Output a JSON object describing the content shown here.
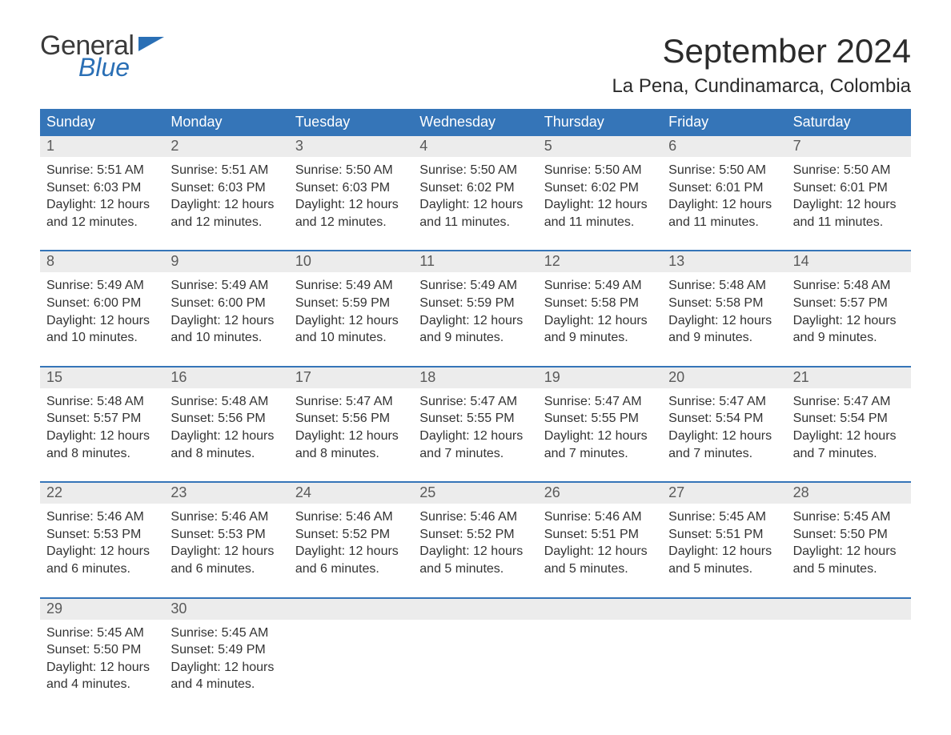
{
  "brand": {
    "text_top": "General",
    "text_bottom": "Blue",
    "top_color": "#3a3a3a",
    "bottom_color": "#2a6fb5",
    "flag_color": "#2a6fb5"
  },
  "title": "September 2024",
  "location": "La Pena, Cundinamarca, Colombia",
  "colors": {
    "header_bg": "#3575b8",
    "header_fg": "#ffffff",
    "daynum_bg": "#ececec",
    "daynum_fg": "#5a5a5a",
    "body_fg": "#333333",
    "week_border": "#3575b8",
    "page_bg": "#ffffff"
  },
  "fonts": {
    "title_size_pt": 32,
    "location_size_pt": 18,
    "dow_size_pt": 14,
    "daynum_size_pt": 14,
    "body_size_pt": 12
  },
  "days_of_week": [
    "Sunday",
    "Monday",
    "Tuesday",
    "Wednesday",
    "Thursday",
    "Friday",
    "Saturday"
  ],
  "weeks": [
    [
      {
        "n": "1",
        "sunrise": "Sunrise: 5:51 AM",
        "sunset": "Sunset: 6:03 PM",
        "daylight1": "Daylight: 12 hours",
        "daylight2": "and 12 minutes."
      },
      {
        "n": "2",
        "sunrise": "Sunrise: 5:51 AM",
        "sunset": "Sunset: 6:03 PM",
        "daylight1": "Daylight: 12 hours",
        "daylight2": "and 12 minutes."
      },
      {
        "n": "3",
        "sunrise": "Sunrise: 5:50 AM",
        "sunset": "Sunset: 6:03 PM",
        "daylight1": "Daylight: 12 hours",
        "daylight2": "and 12 minutes."
      },
      {
        "n": "4",
        "sunrise": "Sunrise: 5:50 AM",
        "sunset": "Sunset: 6:02 PM",
        "daylight1": "Daylight: 12 hours",
        "daylight2": "and 11 minutes."
      },
      {
        "n": "5",
        "sunrise": "Sunrise: 5:50 AM",
        "sunset": "Sunset: 6:02 PM",
        "daylight1": "Daylight: 12 hours",
        "daylight2": "and 11 minutes."
      },
      {
        "n": "6",
        "sunrise": "Sunrise: 5:50 AM",
        "sunset": "Sunset: 6:01 PM",
        "daylight1": "Daylight: 12 hours",
        "daylight2": "and 11 minutes."
      },
      {
        "n": "7",
        "sunrise": "Sunrise: 5:50 AM",
        "sunset": "Sunset: 6:01 PM",
        "daylight1": "Daylight: 12 hours",
        "daylight2": "and 11 minutes."
      }
    ],
    [
      {
        "n": "8",
        "sunrise": "Sunrise: 5:49 AM",
        "sunset": "Sunset: 6:00 PM",
        "daylight1": "Daylight: 12 hours",
        "daylight2": "and 10 minutes."
      },
      {
        "n": "9",
        "sunrise": "Sunrise: 5:49 AM",
        "sunset": "Sunset: 6:00 PM",
        "daylight1": "Daylight: 12 hours",
        "daylight2": "and 10 minutes."
      },
      {
        "n": "10",
        "sunrise": "Sunrise: 5:49 AM",
        "sunset": "Sunset: 5:59 PM",
        "daylight1": "Daylight: 12 hours",
        "daylight2": "and 10 minutes."
      },
      {
        "n": "11",
        "sunrise": "Sunrise: 5:49 AM",
        "sunset": "Sunset: 5:59 PM",
        "daylight1": "Daylight: 12 hours",
        "daylight2": "and 9 minutes."
      },
      {
        "n": "12",
        "sunrise": "Sunrise: 5:49 AM",
        "sunset": "Sunset: 5:58 PM",
        "daylight1": "Daylight: 12 hours",
        "daylight2": "and 9 minutes."
      },
      {
        "n": "13",
        "sunrise": "Sunrise: 5:48 AM",
        "sunset": "Sunset: 5:58 PM",
        "daylight1": "Daylight: 12 hours",
        "daylight2": "and 9 minutes."
      },
      {
        "n": "14",
        "sunrise": "Sunrise: 5:48 AM",
        "sunset": "Sunset: 5:57 PM",
        "daylight1": "Daylight: 12 hours",
        "daylight2": "and 9 minutes."
      }
    ],
    [
      {
        "n": "15",
        "sunrise": "Sunrise: 5:48 AM",
        "sunset": "Sunset: 5:57 PM",
        "daylight1": "Daylight: 12 hours",
        "daylight2": "and 8 minutes."
      },
      {
        "n": "16",
        "sunrise": "Sunrise: 5:48 AM",
        "sunset": "Sunset: 5:56 PM",
        "daylight1": "Daylight: 12 hours",
        "daylight2": "and 8 minutes."
      },
      {
        "n": "17",
        "sunrise": "Sunrise: 5:47 AM",
        "sunset": "Sunset: 5:56 PM",
        "daylight1": "Daylight: 12 hours",
        "daylight2": "and 8 minutes."
      },
      {
        "n": "18",
        "sunrise": "Sunrise: 5:47 AM",
        "sunset": "Sunset: 5:55 PM",
        "daylight1": "Daylight: 12 hours",
        "daylight2": "and 7 minutes."
      },
      {
        "n": "19",
        "sunrise": "Sunrise: 5:47 AM",
        "sunset": "Sunset: 5:55 PM",
        "daylight1": "Daylight: 12 hours",
        "daylight2": "and 7 minutes."
      },
      {
        "n": "20",
        "sunrise": "Sunrise: 5:47 AM",
        "sunset": "Sunset: 5:54 PM",
        "daylight1": "Daylight: 12 hours",
        "daylight2": "and 7 minutes."
      },
      {
        "n": "21",
        "sunrise": "Sunrise: 5:47 AM",
        "sunset": "Sunset: 5:54 PM",
        "daylight1": "Daylight: 12 hours",
        "daylight2": "and 7 minutes."
      }
    ],
    [
      {
        "n": "22",
        "sunrise": "Sunrise: 5:46 AM",
        "sunset": "Sunset: 5:53 PM",
        "daylight1": "Daylight: 12 hours",
        "daylight2": "and 6 minutes."
      },
      {
        "n": "23",
        "sunrise": "Sunrise: 5:46 AM",
        "sunset": "Sunset: 5:53 PM",
        "daylight1": "Daylight: 12 hours",
        "daylight2": "and 6 minutes."
      },
      {
        "n": "24",
        "sunrise": "Sunrise: 5:46 AM",
        "sunset": "Sunset: 5:52 PM",
        "daylight1": "Daylight: 12 hours",
        "daylight2": "and 6 minutes."
      },
      {
        "n": "25",
        "sunrise": "Sunrise: 5:46 AM",
        "sunset": "Sunset: 5:52 PM",
        "daylight1": "Daylight: 12 hours",
        "daylight2": "and 5 minutes."
      },
      {
        "n": "26",
        "sunrise": "Sunrise: 5:46 AM",
        "sunset": "Sunset: 5:51 PM",
        "daylight1": "Daylight: 12 hours",
        "daylight2": "and 5 minutes."
      },
      {
        "n": "27",
        "sunrise": "Sunrise: 5:45 AM",
        "sunset": "Sunset: 5:51 PM",
        "daylight1": "Daylight: 12 hours",
        "daylight2": "and 5 minutes."
      },
      {
        "n": "28",
        "sunrise": "Sunrise: 5:45 AM",
        "sunset": "Sunset: 5:50 PM",
        "daylight1": "Daylight: 12 hours",
        "daylight2": "and 5 minutes."
      }
    ],
    [
      {
        "n": "29",
        "sunrise": "Sunrise: 5:45 AM",
        "sunset": "Sunset: 5:50 PM",
        "daylight1": "Daylight: 12 hours",
        "daylight2": "and 4 minutes."
      },
      {
        "n": "30",
        "sunrise": "Sunrise: 5:45 AM",
        "sunset": "Sunset: 5:49 PM",
        "daylight1": "Daylight: 12 hours",
        "daylight2": "and 4 minutes."
      },
      {
        "n": "",
        "sunrise": "",
        "sunset": "",
        "daylight1": "",
        "daylight2": ""
      },
      {
        "n": "",
        "sunrise": "",
        "sunset": "",
        "daylight1": "",
        "daylight2": ""
      },
      {
        "n": "",
        "sunrise": "",
        "sunset": "",
        "daylight1": "",
        "daylight2": ""
      },
      {
        "n": "",
        "sunrise": "",
        "sunset": "",
        "daylight1": "",
        "daylight2": ""
      },
      {
        "n": "",
        "sunrise": "",
        "sunset": "",
        "daylight1": "",
        "daylight2": ""
      }
    ]
  ]
}
